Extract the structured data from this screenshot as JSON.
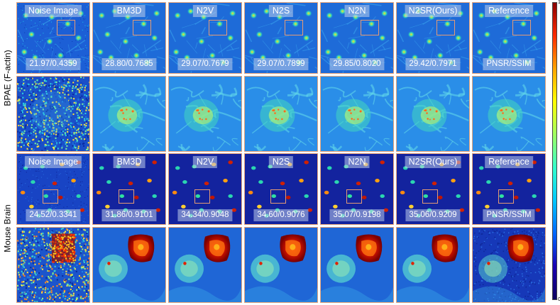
{
  "row_labels": [
    "BPAE (F-actin)",
    "Mouse Brain"
  ],
  "columns": [
    "Noise Image",
    "BM3D",
    "N2V",
    "N2S",
    "N2N",
    "N2SR(Ours)",
    "Reference"
  ],
  "metrics": {
    "bpae": [
      "21.97/0.4359",
      "28.80/0.7685",
      "29.07/0.7679",
      "29.07/0.7899",
      "29.85/0.8020",
      "29.42/0.7971",
      "PNSR/SSIM"
    ],
    "brain": [
      "24.52/0.3341",
      "31.86/0.9101",
      "34.34/0.9048",
      "34.60/0.9076",
      "35.07/0.9198",
      "35.06/0.9209",
      "PNSR/SSIM"
    ]
  },
  "colorbar": {
    "max_label": "1",
    "min_label": "0",
    "colormap": "jet"
  },
  "colors": {
    "tile_border": "#e8a47a",
    "roi_box": "#e59b74"
  }
}
